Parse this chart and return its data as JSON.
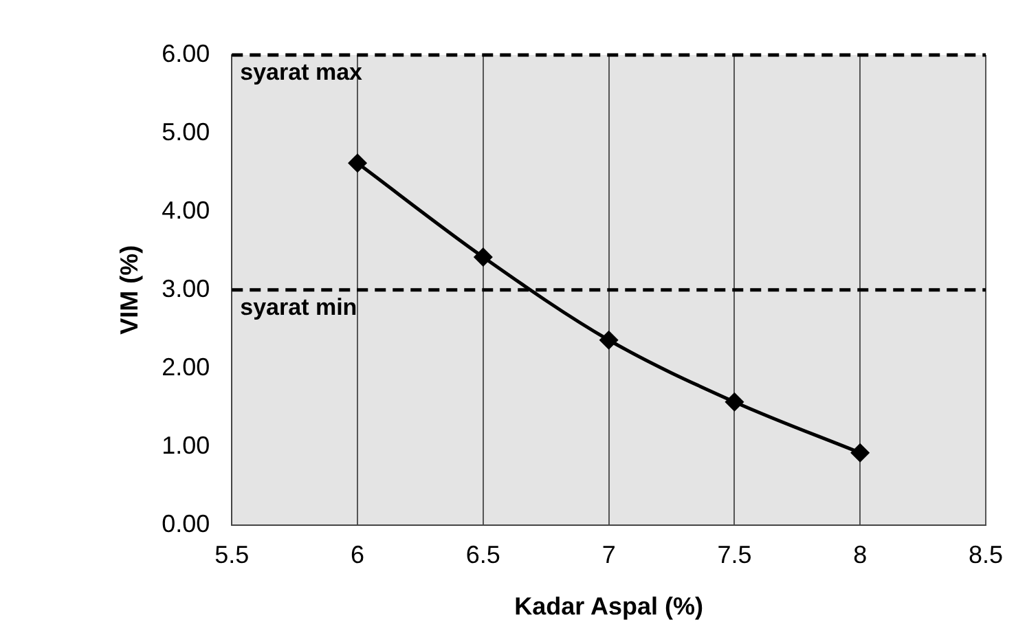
{
  "chart_data": {
    "type": "line",
    "xlabel": "Kadar Aspal (%)",
    "ylabel": "VIM (%)",
    "x": [
      6,
      6.5,
      7,
      7.5,
      8
    ],
    "series": [
      {
        "color": "#000000",
        "values": [
          4.62,
          3.42,
          2.36,
          1.57,
          0.92
        ]
      }
    ],
    "xlim": [
      5.5,
      8.5
    ],
    "xticks": [
      5.5,
      6,
      6.5,
      7,
      7.5,
      8,
      8.5
    ],
    "ylim": [
      0,
      6
    ],
    "yticks": [
      {
        "value": 0,
        "label": "0.00"
      },
      {
        "value": 1,
        "label": "1.00"
      },
      {
        "value": 2,
        "label": "2.00"
      },
      {
        "value": 3,
        "label": "3.00"
      },
      {
        "value": 4,
        "label": "4.00"
      },
      {
        "value": 5,
        "label": "5.00"
      },
      {
        "value": 6,
        "label": "6.00"
      }
    ],
    "ref_lines": [
      {
        "axis": "y",
        "value": 6,
        "label": "syarat max",
        "line_style": "dashed"
      },
      {
        "axis": "y",
        "value": 3,
        "label": "syarat min",
        "line_style": "dashed"
      }
    ],
    "grid": "x",
    "legend": false,
    "marker": "diamond",
    "line_style": "solid"
  }
}
